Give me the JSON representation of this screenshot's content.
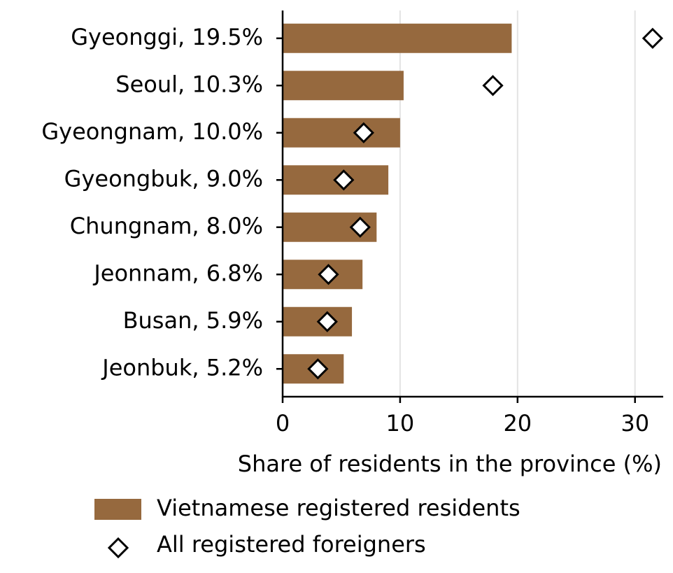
{
  "chart_data": {
    "type": "bar",
    "orientation": "horizontal",
    "xlabel": "Share of residents in the province (%)",
    "categories": [
      "Gyeonggi, 19.5%",
      "Seoul, 10.3%",
      "Gyeongnam, 10.0%",
      "Gyeongbuk, 9.0%",
      "Chungnam, 8.0%",
      "Jeonnam, 6.8%",
      "Busan, 5.9%",
      "Jeonbuk, 5.2%"
    ],
    "series": [
      {
        "name": "Vietnamese registered residents",
        "color": "#96693e",
        "marker": "bar",
        "values": [
          19.5,
          10.3,
          10.0,
          9.0,
          8.0,
          6.8,
          5.9,
          5.2
        ]
      },
      {
        "name": "All registered foreigners",
        "color": "#000000",
        "marker": "diamond",
        "values": [
          31.5,
          17.9,
          6.9,
          5.2,
          6.6,
          3.9,
          3.8,
          3.0
        ]
      }
    ],
    "xlim": [
      0,
      32.4
    ],
    "xticks": [
      0,
      10,
      20,
      30
    ],
    "grid": true,
    "legend": "bottom"
  }
}
